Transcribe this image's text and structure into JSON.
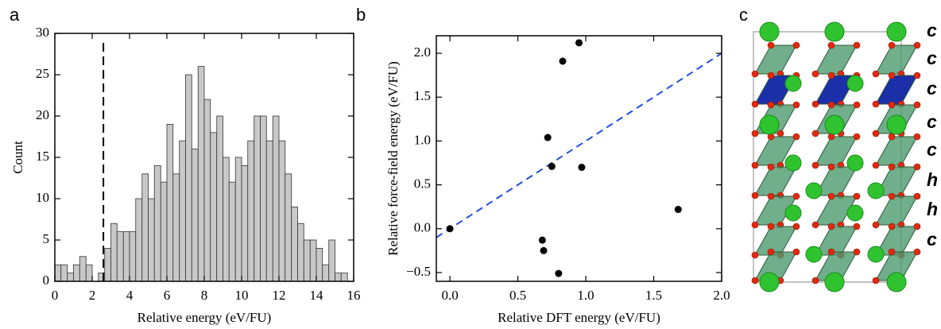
{
  "chart_data": [
    {
      "type": "histogram",
      "label": "a",
      "xlabel": "Relative energy (eV/FU)",
      "ylabel": "Count",
      "bins": [
        0,
        0.33,
        0.67,
        1,
        1.33,
        1.67,
        2,
        2.33,
        2.67,
        3,
        3.33,
        3.67,
        4,
        4.33,
        4.67,
        5,
        5.33,
        5.67,
        6,
        6.33,
        6.67,
        7,
        7.33,
        7.67,
        8,
        8.33,
        8.67,
        9,
        9.33,
        9.67,
        10,
        10.33,
        10.67,
        11,
        11.33,
        11.67,
        12,
        12.33,
        12.67,
        13,
        13.33,
        13.67,
        14,
        14.33,
        14.67,
        15,
        15.33,
        15.67
      ],
      "values": [
        2,
        2,
        1,
        2,
        3,
        2,
        0,
        1,
        4,
        7,
        6,
        6,
        6,
        10,
        13,
        10,
        14,
        12,
        19,
        13,
        17,
        25,
        16,
        26,
        22,
        18,
        20,
        15,
        12,
        15,
        14,
        17,
        20,
        20,
        17,
        20,
        17,
        13,
        9,
        7,
        5,
        5,
        4,
        2,
        5,
        1,
        1
      ],
      "color": "#c8c8c8",
      "vline": 2.6,
      "xlim": [
        0,
        16
      ],
      "xticks": [
        0,
        2,
        4,
        6,
        8,
        10,
        12,
        14,
        16
      ],
      "ylim": [
        0,
        30
      ],
      "yticks": [
        0,
        5,
        10,
        15,
        20,
        25,
        30
      ]
    },
    {
      "type": "scatter",
      "label": "b",
      "xlabel": "Relative DFT energy (eV/FU)",
      "ylabel": "Relative force-field energy (eV/FU)",
      "x": [
        0,
        0.68,
        0.69,
        0.8,
        0.72,
        0.75,
        0.83,
        0.95,
        0.97,
        1.68
      ],
      "values": [
        0,
        -0.13,
        -0.25,
        -0.51,
        1.04,
        0.71,
        1.91,
        2.12,
        0.7,
        0.22
      ],
      "color": "#000000",
      "diagonal_color": "#1f4fe0",
      "xlim": [
        -0.1,
        2.0
      ],
      "xticks": [
        {
          "value": 0,
          "label": "0.0"
        },
        {
          "value": 0.5,
          "label": "0.5"
        },
        {
          "value": 1,
          "label": "1.0"
        },
        {
          "value": 1.5,
          "label": "1.5"
        },
        {
          "value": 2,
          "label": "2.0"
        }
      ],
      "ylim": [
        -0.6,
        2.2
      ],
      "yticks": [
        {
          "value": -0.5,
          "label": "−0.5"
        },
        {
          "value": 0,
          "label": "0.0"
        },
        {
          "value": 0.5,
          "label": "0.5"
        },
        {
          "value": 1,
          "label": "1.0"
        },
        {
          "value": 1.5,
          "label": "1.5"
        },
        {
          "value": 2,
          "label": "2.0"
        }
      ]
    }
  ],
  "structure": {
    "label": "c",
    "stacking": [
      "c",
      "c",
      "c",
      "c",
      "c",
      "h",
      "h",
      "c"
    ]
  }
}
